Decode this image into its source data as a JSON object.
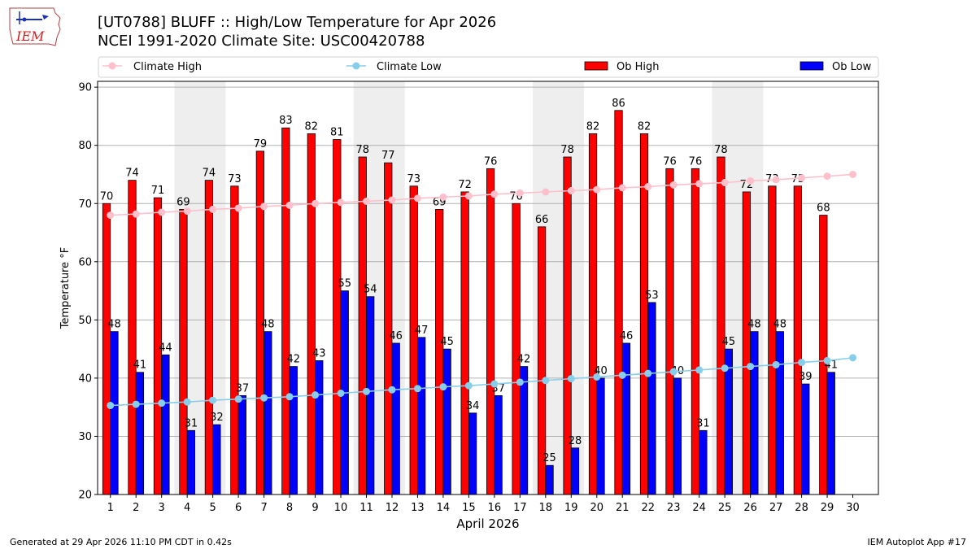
{
  "header": {
    "logo_text": "IEM",
    "title_line1": "[UT0788] BLUFF :: High/Low Temperature for Apr 2026",
    "title_line2": "NCEI 1991-2020 Climate Site: USC00420788"
  },
  "footer": {
    "generated": "Generated at 29 Apr 2026 11:10 PM CDT in 0.42s",
    "app": "IEM Autoplot App #17"
  },
  "colors": {
    "ob_high": "#ff0000",
    "ob_low": "#0000ff",
    "climate_high": "#ffc0cb",
    "climate_low": "#87ceeb",
    "weekend_shade": "#eeeeee",
    "grid": "#b0b0b0"
  },
  "chart_data": {
    "type": "bar",
    "title": "[UT0788] BLUFF :: High/Low Temperature for Apr 2026",
    "subtitle": "NCEI 1991-2020 Climate Site: USC00420788",
    "xlabel": "April 2026",
    "ylabel": "Temperature °F",
    "ylim": [
      20,
      91
    ],
    "yticks": [
      20,
      30,
      40,
      50,
      60,
      70,
      80,
      90
    ],
    "grid": "horizontal",
    "legend_position": "top",
    "categories": [
      "1",
      "2",
      "3",
      "4",
      "5",
      "6",
      "7",
      "8",
      "9",
      "10",
      "11",
      "12",
      "13",
      "14",
      "15",
      "16",
      "17",
      "18",
      "19",
      "20",
      "21",
      "22",
      "23",
      "24",
      "25",
      "26",
      "27",
      "28",
      "29",
      "30"
    ],
    "shaded_days": [
      [
        4,
        5
      ],
      [
        11,
        12
      ],
      [
        18,
        19
      ],
      [
        25,
        26
      ]
    ],
    "series": [
      {
        "name": "Ob High",
        "kind": "bar",
        "values": [
          70,
          74,
          71,
          69,
          74,
          73,
          79,
          83,
          82,
          81,
          78,
          77,
          73,
          69,
          72,
          76,
          70,
          66,
          78,
          82,
          86,
          82,
          76,
          76,
          78,
          72,
          73,
          73,
          68,
          null
        ]
      },
      {
        "name": "Ob Low",
        "kind": "bar",
        "values": [
          48,
          41,
          44,
          31,
          32,
          37,
          48,
          42,
          43,
          55,
          54,
          46,
          47,
          45,
          34,
          37,
          42,
          25,
          28,
          40,
          46,
          53,
          40,
          31,
          45,
          48,
          48,
          39,
          41,
          null
        ]
      },
      {
        "name": "Climate High",
        "kind": "line",
        "values": [
          68.0,
          68.2,
          68.5,
          68.7,
          69.0,
          69.2,
          69.5,
          69.7,
          70.0,
          70.2,
          70.4,
          70.6,
          70.9,
          71.1,
          71.3,
          71.6,
          71.8,
          72.0,
          72.2,
          72.4,
          72.7,
          72.9,
          73.2,
          73.4,
          73.6,
          73.9,
          74.1,
          74.4,
          74.7,
          75.0
        ]
      },
      {
        "name": "Climate Low",
        "kind": "line",
        "values": [
          35.3,
          35.5,
          35.7,
          35.9,
          36.2,
          36.4,
          36.6,
          36.8,
          37.1,
          37.4,
          37.7,
          38.0,
          38.2,
          38.5,
          38.7,
          39.0,
          39.3,
          39.6,
          39.9,
          40.2,
          40.5,
          40.8,
          41.1,
          41.4,
          41.7,
          42.0,
          42.3,
          42.7,
          43.0,
          43.5
        ]
      }
    ]
  }
}
